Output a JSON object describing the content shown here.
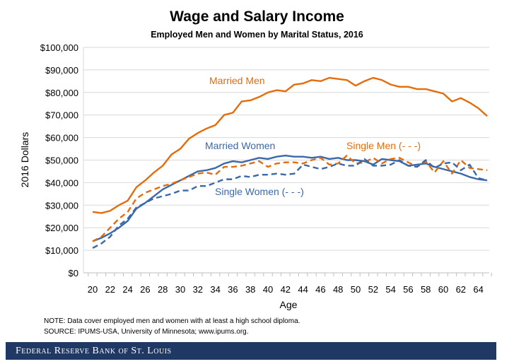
{
  "chart_data": {
    "type": "line",
    "title": "Wage and Salary Income",
    "subtitle": "Employed Men and Women by Marital Status, 2016",
    "xlabel": "Age",
    "ylabel": "2016 Dollars",
    "ylim": [
      0,
      100000
    ],
    "xlim": [
      20,
      65
    ],
    "grid": true,
    "yticks": [
      0,
      10000,
      20000,
      30000,
      40000,
      50000,
      60000,
      70000,
      80000,
      90000,
      100000
    ],
    "ytick_labels": [
      "$0",
      "$10,000",
      "$20,000",
      "$30,000",
      "$40,000",
      "$50,000",
      "$60,000",
      "$70,000",
      "$80,000",
      "$90,000",
      "$100,000"
    ],
    "xtick_labels": [
      "20",
      "22",
      "24",
      "26",
      "28",
      "30",
      "32",
      "34",
      "36",
      "38",
      "40",
      "42",
      "44",
      "46",
      "48",
      "50",
      "52",
      "54",
      "56",
      "58",
      "60",
      "62",
      "64"
    ],
    "x": [
      20,
      21,
      22,
      23,
      24,
      25,
      26,
      27,
      28,
      29,
      30,
      31,
      32,
      33,
      34,
      35,
      36,
      37,
      38,
      39,
      40,
      41,
      42,
      43,
      44,
      45,
      46,
      47,
      48,
      49,
      50,
      51,
      52,
      53,
      54,
      55,
      56,
      57,
      58,
      59,
      60,
      61,
      62,
      63,
      64,
      65
    ],
    "series": [
      {
        "name": "Married Men",
        "label": "Married Men",
        "color": "#e46c0a",
        "dashed": false,
        "values": [
          27000,
          26500,
          27500,
          30000,
          32000,
          38000,
          41000,
          44500,
          47500,
          52500,
          55000,
          59500,
          62000,
          64000,
          65500,
          70000,
          71000,
          76000,
          76500,
          78000,
          80000,
          81000,
          80500,
          83500,
          84000,
          85500,
          85000,
          86500,
          86000,
          85500,
          83000,
          85000,
          86500,
          85500,
          83500,
          82500,
          82500,
          81500,
          81500,
          80500,
          79500,
          76000,
          77500,
          75500,
          73000,
          69500
        ]
      },
      {
        "name": "Married Women",
        "label": "Married Women",
        "color": "#3a68a8",
        "dashed": false,
        "values": [
          14000,
          15500,
          17500,
          20000,
          23000,
          28500,
          31000,
          34000,
          37000,
          39000,
          41000,
          43000,
          45000,
          45500,
          46500,
          48500,
          49500,
          49000,
          50000,
          51000,
          50500,
          51500,
          52000,
          51500,
          51500,
          51000,
          51500,
          50500,
          51000,
          50000,
          50000,
          49500,
          48000,
          50500,
          50000,
          49500,
          47500,
          48000,
          48500,
          47000,
          46000,
          45000,
          44000,
          42500,
          41500,
          41000
        ]
      },
      {
        "name": "Single Men",
        "label": "Single Men (- - -)",
        "color": "#e46c0a",
        "dashed": true,
        "values": [
          14000,
          16000,
          20000,
          24000,
          27000,
          33000,
          35500,
          37000,
          38500,
          39500,
          41000,
          42500,
          44000,
          44500,
          43500,
          47000,
          47000,
          47500,
          48500,
          49500,
          47000,
          48500,
          49000,
          49000,
          48500,
          50000,
          51000,
          48000,
          48500,
          52000,
          48500,
          49000,
          51000,
          48500,
          50500,
          51000,
          49000,
          47000,
          49500,
          44500,
          49500,
          44000,
          50000,
          46500,
          46000,
          45500
        ]
      },
      {
        "name": "Single Women",
        "label": "Single Women (- - -)",
        "color": "#3a68a8",
        "dashed": true,
        "values": [
          11000,
          13000,
          16000,
          21000,
          24000,
          29000,
          31000,
          33000,
          34000,
          35000,
          36500,
          36500,
          38500,
          38500,
          40000,
          41500,
          41500,
          43000,
          42500,
          43500,
          43500,
          44000,
          43500,
          44000,
          48000,
          47000,
          46000,
          47000,
          48500,
          47500,
          47500,
          50500,
          47500,
          47500,
          48000,
          50000,
          47500,
          47000,
          50000,
          46500,
          48500,
          49000,
          45500,
          48000,
          42000,
          41000
        ]
      }
    ]
  },
  "notes": {
    "note": "NOTE: Data cover employed men and women with at least a high school diploma.",
    "source": "SOURCE: IPUMS-USA,  University of Minnesota; www.ipums.org."
  },
  "footer": {
    "brand": "Federal Reserve Bank of St. Louis"
  }
}
